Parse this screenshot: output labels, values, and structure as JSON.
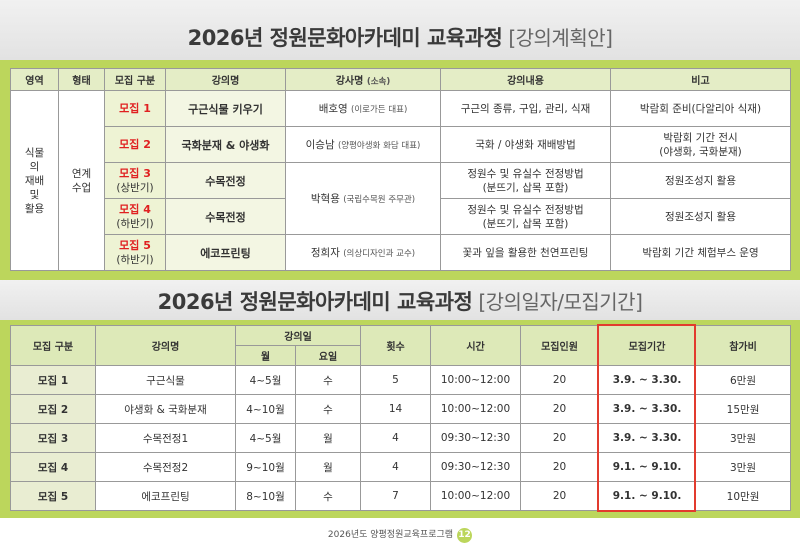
{
  "title_1": {
    "main": "2026년 정원문화아카데미 교육과정",
    "sub": "[강의계획안]"
  },
  "plan_table": {
    "header": [
      "영역",
      "형태",
      "모집 구분",
      "강의명",
      "강사명",
      "강의내용",
      "비고"
    ],
    "header_note": "(소속)",
    "area": [
      "식물",
      "의",
      "재배",
      "및",
      "활용"
    ],
    "form": [
      "연계",
      "수업"
    ],
    "rows": [
      {
        "group": "모집 1",
        "course": "구근식물 키우기",
        "instructor": "배호영",
        "affiliation": "(이로가든 대표)",
        "content": [
          "구근의 종류, 구입, 관리, 식재"
        ],
        "note": [
          "박람회 준비(다알리아 식재)"
        ]
      },
      {
        "group": "모집 2",
        "course": "국화분재 & 야생화",
        "instructor": "이승남",
        "affiliation": "(양평야생화 화담 대표)",
        "content": [
          "국화 / 야생화 재배방법"
        ],
        "note": [
          "박람회 기간 전시",
          "(야생화, 국화분재)"
        ]
      },
      {
        "group": "모집 3",
        "period": "(상반기)",
        "course": "수목전정",
        "instructor": "박혁용",
        "affiliation": "(국립수목원 주무관)",
        "content": [
          "정원수 및 유실수 전정방법",
          "(분뜨기, 삽목 포함)"
        ],
        "note": [
          "정원조성지 활용"
        ]
      },
      {
        "group": "모집 4",
        "period": "(하반기)",
        "course": "수목전정",
        "content": [
          "정원수 및 유실수 전정방법",
          "(분뜨기, 삽목 포함)"
        ],
        "note": [
          "정원조성지 활용"
        ]
      },
      {
        "group": "모집 5",
        "period": "(하반기)",
        "course": "에코프린팅",
        "instructor": "정희자",
        "affiliation": "(의상디자인과 교수)",
        "content": [
          "꽃과 잎을 활용한 천연프린팅"
        ],
        "note": [
          "박람회 기간 체험부스 운영"
        ]
      }
    ]
  },
  "title_2": {
    "main": "2026년 정원문화아카데미 교육과정",
    "sub": "[강의일자/모집기간]"
  },
  "schedule_table": {
    "header": [
      "모집 구분",
      "강의명",
      "강의일",
      "횟수",
      "시간",
      "모집인원",
      "모집기간",
      "참가비"
    ],
    "subheader": [
      "월",
      "요일"
    ],
    "rows": [
      [
        "모집 1",
        "구근식물",
        "4~5월",
        "수",
        "5",
        "10:00~12:00",
        "20",
        "3.9. ~ 3.30.",
        "6만원"
      ],
      [
        "모집 2",
        "야생화 & 국화분재",
        "4~10월",
        "수",
        "14",
        "10:00~12:00",
        "20",
        "3.9. ~ 3.30.",
        "15만원"
      ],
      [
        "모집 3",
        "수목전정1",
        "4~5월",
        "월",
        "4",
        "09:30~12:30",
        "20",
        "3.9. ~ 3.30.",
        "3만원"
      ],
      [
        "모집 4",
        "수목전정2",
        "9~10월",
        "월",
        "4",
        "09:30~12:30",
        "20",
        "9.1. ~ 9.10.",
        "3만원"
      ],
      [
        "모집 5",
        "에코프린팅",
        "8~10월",
        "수",
        "7",
        "10:00~12:00",
        "20",
        "9.1. ~ 9.10.",
        "10만원"
      ]
    ]
  },
  "footer": {
    "text": "2026년도 양평정원교육프로그램",
    "page": "12"
  }
}
